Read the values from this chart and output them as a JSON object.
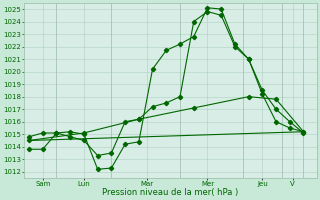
{
  "background_color": "#c8e8d8",
  "plot_bg_color": "#d8ede5",
  "grid_color": "#b0d0c0",
  "line_color": "#006600",
  "marker_color": "#006600",
  "xlabel": "Pression niveau de la mer( hPa )",
  "ylim": [
    1011.5,
    1025.5
  ],
  "ytick_min": 1012,
  "ytick_max": 1025,
  "day_labels": [
    "Sam",
    "Lun",
    "Mar",
    "Mer",
    "Jeu",
    "V"
  ],
  "series1": {
    "x": [
      0,
      0.5,
      1,
      1.5,
      2,
      2.5,
      3,
      3.5,
      4,
      4.5,
      5,
      5.5,
      6,
      6.5,
      7,
      7.5,
      8,
      8.5,
      9,
      9.5,
      10
    ],
    "y": [
      1013.8,
      1013.8,
      1015.1,
      1015.2,
      1015.0,
      1012.2,
      1012.3,
      1014.2,
      1014.4,
      1020.2,
      1021.7,
      1022.2,
      1022.8,
      1025.1,
      1025.0,
      1022.2,
      1021.0,
      1018.5,
      1017.0,
      1016.0,
      1015.1
    ]
  },
  "series2": {
    "x": [
      0,
      0.5,
      1,
      1.5,
      2,
      2.5,
      3,
      3.5,
      4,
      4.5,
      5,
      5.5,
      6,
      6.5,
      7,
      7.5,
      8,
      8.5,
      9,
      9.5,
      10
    ],
    "y": [
      1014.8,
      1015.1,
      1015.1,
      1014.8,
      1014.5,
      1013.3,
      1013.5,
      1016.0,
      1016.2,
      1017.2,
      1017.5,
      1018.0,
      1024.0,
      1024.8,
      1024.5,
      1022.0,
      1021.0,
      1018.2,
      1016.0,
      1015.5,
      1015.2
    ]
  },
  "series3": {
    "x": [
      0,
      2,
      4,
      6,
      8,
      9,
      10
    ],
    "y": [
      1014.5,
      1015.1,
      1016.2,
      1017.1,
      1018.0,
      1017.8,
      1015.2
    ]
  },
  "series4": {
    "x": [
      0,
      10
    ],
    "y": [
      1014.5,
      1015.2
    ]
  },
  "day_boundary_x": [
    1.0,
    3.0,
    5.5,
    7.8,
    9.2,
    10.0
  ],
  "day_tick_x": [
    0.5,
    2.0,
    4.3,
    6.5,
    8.5,
    9.6
  ],
  "xlim": [
    -0.2,
    10.5
  ]
}
